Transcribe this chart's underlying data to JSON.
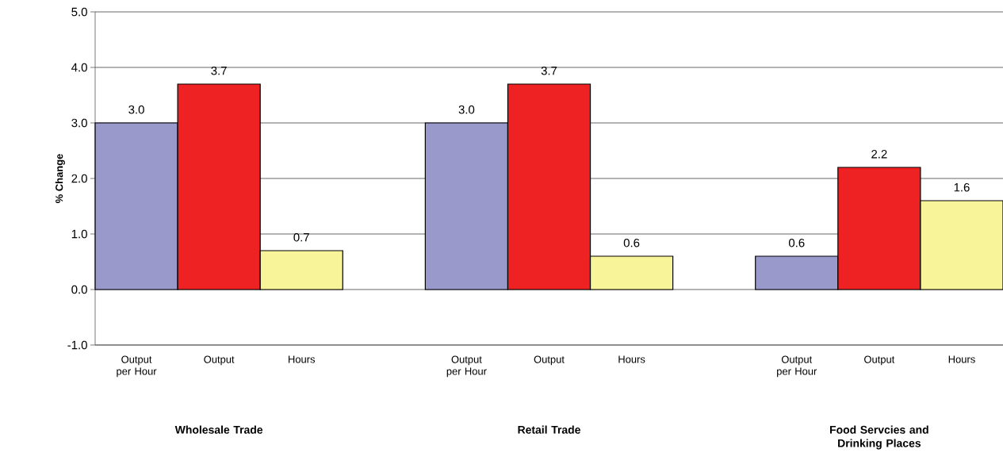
{
  "chart_data": {
    "type": "bar",
    "ylabel": "% Change",
    "categories": [
      "Output per Hour",
      "Output",
      "Hours",
      null,
      "Output per Hour",
      "Output",
      "Hours",
      null,
      "Output per Hour",
      "Output",
      "Hours"
    ],
    "values": [
      3.0,
      3.7,
      0.7,
      null,
      3.0,
      3.7,
      0.6,
      null,
      0.6,
      2.2,
      1.6
    ],
    "value_labels": [
      "3.0",
      "3.7",
      "0.7",
      null,
      "3.0",
      "3.7",
      "0.6",
      null,
      "0.6",
      "2.2",
      "1.6"
    ],
    "colors": [
      "#9999cc",
      "#ee2222",
      "#f8f49a",
      null,
      "#9999cc",
      "#ee2222",
      "#f8f49a",
      null,
      "#9999cc",
      "#ee2222",
      "#f8f49a"
    ],
    "annotations": [
      "Wholesale Trade",
      "Retail Trade",
      "Food Servcies and Drinking Places"
    ],
    "ylim": [
      -1,
      5
    ],
    "yticks": [
      {
        "value": -1,
        "label": "-1.0"
      },
      {
        "value": 0,
        "label": "0.0"
      },
      {
        "value": 1,
        "label": "1.0"
      },
      {
        "value": 2,
        "label": "2.0"
      },
      {
        "value": 3,
        "label": "3.0"
      },
      {
        "value": 4,
        "label": "4.0"
      },
      {
        "value": 5,
        "label": "5.0"
      }
    ],
    "grid": "y"
  }
}
